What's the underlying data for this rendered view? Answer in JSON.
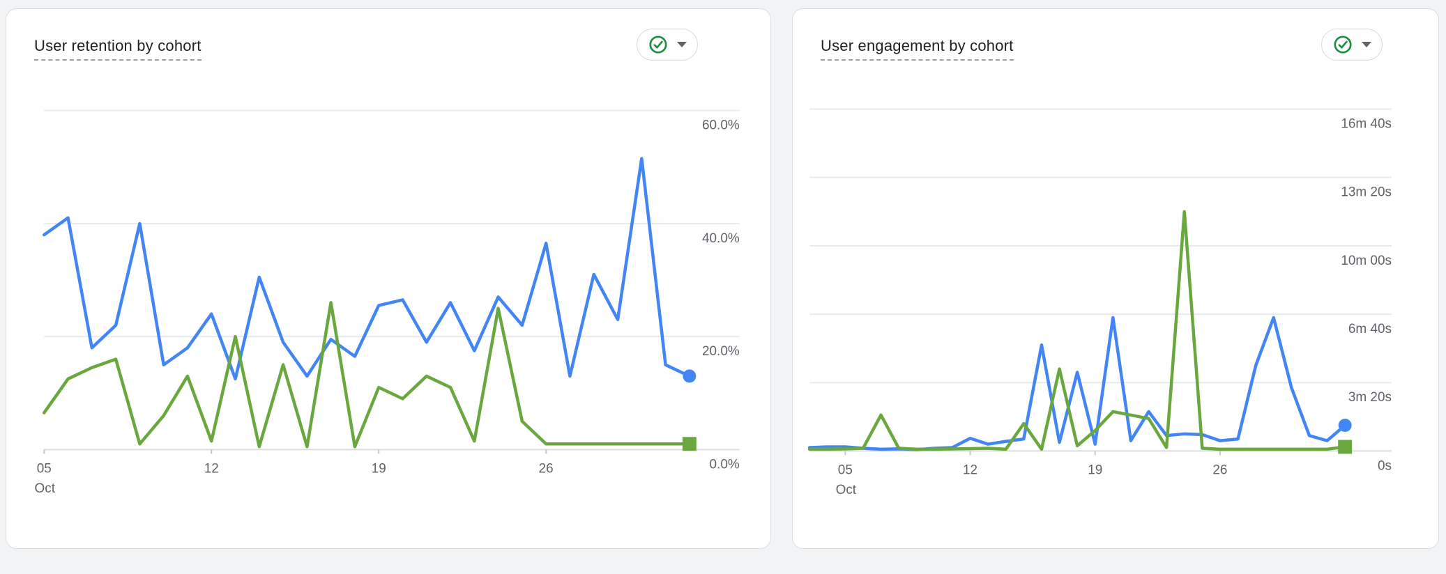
{
  "page": {
    "background": "#f1f3f4"
  },
  "colors": {
    "series_blue": "#4285f4",
    "series_green": "#6aa83f",
    "check_green": "#1e8e3e",
    "gridline": "#e8eaed",
    "axis_line": "#dadce0",
    "axis_text": "#5f6368",
    "title_text": "#202124"
  },
  "cards": [
    {
      "title": "User retention by cohort",
      "status_button": {
        "icon": "check-circle",
        "icon_color": "#1e8e3e",
        "caret": "down"
      }
    },
    {
      "title": "User engagement by cohort",
      "status_button": {
        "icon": "check-circle",
        "icon_color": "#1e8e3e",
        "caret": "down"
      }
    }
  ],
  "chart_data": [
    {
      "type": "line",
      "title": "User retention by cohort",
      "grid": true,
      "legend": "none",
      "ylim": [
        0,
        60
      ],
      "ytick_labels": [
        "60.0%",
        "40.0%",
        "20.0%",
        "0.0%"
      ],
      "ytick_values": [
        60,
        40,
        20,
        0
      ],
      "x": [
        "Oct 5",
        "Oct 6",
        "Oct 7",
        "Oct 8",
        "Oct 9",
        "Oct 10",
        "Oct 11",
        "Oct 12",
        "Oct 13",
        "Oct 14",
        "Oct 15",
        "Oct 16",
        "Oct 17",
        "Oct 18",
        "Oct 19",
        "Oct 20",
        "Oct 21",
        "Oct 22",
        "Oct 23",
        "Oct 24",
        "Oct 25",
        "Oct 26",
        "Oct 27",
        "Oct 28",
        "Oct 29",
        "Oct 30",
        "Oct 31",
        "Nov 1"
      ],
      "x_ticks": [
        {
          "index": 0,
          "label": "05",
          "sub": "Oct"
        },
        {
          "index": 7,
          "label": "12"
        },
        {
          "index": 14,
          "label": "19"
        },
        {
          "index": 21,
          "label": "26"
        }
      ],
      "series": [
        {
          "name": "series-blue",
          "color": "#4285f4",
          "end_marker": "circle",
          "unit": "%",
          "values": [
            38,
            41,
            18,
            22,
            40,
            15,
            18,
            24,
            12.5,
            30.5,
            19,
            13,
            19.5,
            16.5,
            25.5,
            26.5,
            19,
            26,
            17.5,
            27,
            22,
            36.5,
            13,
            31,
            23,
            51.5,
            15,
            13
          ]
        },
        {
          "name": "series-green",
          "color": "#6aa83f",
          "end_marker": "square",
          "unit": "%",
          "values": [
            6.5,
            12.5,
            14.5,
            16,
            1,
            6,
            13,
            1.5,
            20,
            0.5,
            15,
            0.5,
            26,
            0.5,
            11,
            9,
            13,
            11,
            1.5,
            25,
            5,
            1,
            1,
            1,
            1,
            1,
            1,
            1
          ]
        }
      ]
    },
    {
      "type": "line",
      "title": "User engagement by cohort",
      "grid": true,
      "legend": "none",
      "ylim": [
        0,
        1000
      ],
      "ytick_labels": [
        "16m 40s",
        "13m 20s",
        "10m 00s",
        "6m 40s",
        "3m 20s",
        "0s"
      ],
      "ytick_values": [
        1000,
        800,
        600,
        400,
        200,
        0
      ],
      "x": [
        "Oct 3",
        "Oct 4",
        "Oct 5",
        "Oct 6",
        "Oct 7",
        "Oct 8",
        "Oct 9",
        "Oct 10",
        "Oct 11",
        "Oct 12",
        "Oct 13",
        "Oct 14",
        "Oct 15",
        "Oct 16",
        "Oct 17",
        "Oct 18",
        "Oct 19",
        "Oct 20",
        "Oct 21",
        "Oct 22",
        "Oct 23",
        "Oct 24",
        "Oct 25",
        "Oct 26",
        "Oct 27",
        "Oct 28",
        "Oct 29",
        "Oct 30",
        "Oct 31",
        "Nov 1",
        "Nov 2"
      ],
      "x_ticks": [
        {
          "index": 2,
          "label": "05",
          "sub": "Oct"
        },
        {
          "index": 9,
          "label": "12"
        },
        {
          "index": 16,
          "label": "19"
        },
        {
          "index": 23,
          "label": "26"
        }
      ],
      "series": [
        {
          "name": "series-blue",
          "color": "#4285f4",
          "end_marker": "circle",
          "unit": "seconds",
          "values": [
            10,
            12,
            12,
            8,
            5,
            6,
            4,
            8,
            10,
            37,
            20,
            28,
            35,
            310,
            25,
            230,
            20,
            390,
            30,
            115,
            45,
            50,
            48,
            30,
            35,
            250,
            390,
            185,
            45,
            30,
            75
          ]
        },
        {
          "name": "series-green",
          "color": "#6aa83f",
          "end_marker": "square",
          "unit": "seconds",
          "values": [
            5,
            5,
            6,
            8,
            105,
            8,
            5,
            5,
            6,
            7,
            8,
            5,
            80,
            5,
            240,
            15,
            60,
            115,
            105,
            95,
            10,
            700,
            8,
            5,
            5,
            5,
            5,
            5,
            5,
            5,
            12
          ]
        }
      ]
    }
  ]
}
